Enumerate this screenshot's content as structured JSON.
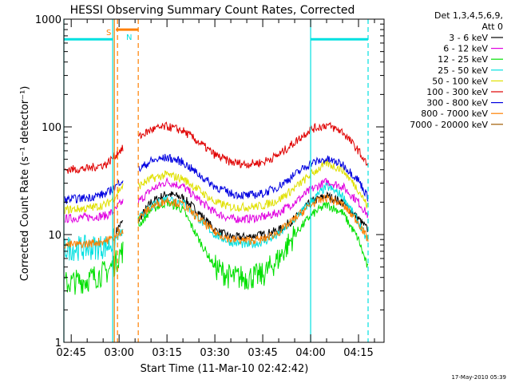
{
  "chart_data": {
    "type": "line",
    "title": "HESSI Observing Summary Count Rates, Corrected",
    "xlabel": "Start Time (11-Mar-10 02:42:42)",
    "ylabel": "Corrected Count Rate (s⁻¹ detector⁻¹)",
    "y_scale": "log",
    "ylim": [
      1,
      1000
    ],
    "xlim": [
      "02:42:42",
      "04:23:00"
    ],
    "y_ticks": [
      {
        "value": 1,
        "label": "1"
      },
      {
        "value": 10,
        "label": "10"
      },
      {
        "value": 100,
        "label": "100"
      },
      {
        "value": 1000,
        "label": "1000"
      }
    ],
    "x_ticks": [
      "02:45",
      "03:00",
      "03:15",
      "03:30",
      "03:45",
      "04:00",
      "04:15"
    ],
    "legend_title": [
      "Det 1,3,4,5,6,9,",
      "Att 0"
    ],
    "legend_position": "outside-right",
    "timestamp": "17-May-2010 05:39",
    "flag_labels": {
      "saa": "S",
      "night": "N"
    },
    "series": [
      {
        "name": "3 - 6 keV",
        "color": "#000000",
        "x": [
          "02:59",
          "03:00",
          "03:01",
          "03:06",
          "03:10",
          "03:15",
          "03:20",
          "03:25",
          "03:30",
          "03:35",
          "03:40",
          "03:45",
          "03:50",
          "03:55",
          "04:00",
          "04:05",
          "04:10",
          "04:15",
          "04:18"
        ],
        "values": [
          10.5,
          12,
          13,
          13.5,
          20,
          24,
          22,
          16,
          11,
          9.5,
          9.5,
          10,
          11,
          14,
          20,
          23,
          20,
          14,
          11
        ]
      },
      {
        "name": "6 - 12 keV",
        "color": "#e000e0",
        "x": [
          "02:43",
          "02:50",
          "02:56",
          "02:59",
          "03:00",
          "03:01",
          "03:06",
          "03:10",
          "03:15",
          "03:20",
          "03:25",
          "03:30",
          "03:35",
          "03:40",
          "03:45",
          "03:50",
          "03:55",
          "04:00",
          "04:05",
          "04:10",
          "04:15",
          "04:18"
        ],
        "values": [
          14,
          14.5,
          15,
          17,
          19,
          20,
          20,
          26,
          31,
          28,
          21,
          16,
          14,
          14,
          14.5,
          16,
          20,
          26,
          31,
          28,
          20,
          15
        ]
      },
      {
        "name": "12 - 25 keV",
        "color": "#00e000",
        "x": [
          "02:43",
          "02:50",
          "02:56",
          "02:59",
          "03:00",
          "03:01",
          "03:06",
          "03:10",
          "03:15",
          "03:20",
          "03:25",
          "03:30",
          "03:35",
          "03:40",
          "03:45",
          "03:50",
          "03:55",
          "04:00",
          "04:05",
          "04:10",
          "04:15",
          "04:18"
        ],
        "values": [
          3.5,
          3.8,
          4.5,
          5.5,
          6.5,
          7,
          12,
          17,
          20,
          17,
          9,
          5,
          4,
          4,
          4.2,
          6,
          10,
          15,
          19,
          16,
          9,
          4.8
        ]
      },
      {
        "name": "25 - 50 keV",
        "color": "#00e0e0",
        "x": [
          "02:43",
          "02:50",
          "02:56",
          "02:59",
          "03:00",
          "03:01",
          "03:06",
          "03:10",
          "03:15",
          "03:20",
          "03:25",
          "03:30",
          "03:35",
          "03:40",
          "03:45",
          "03:50",
          "03:55",
          "04:00",
          "04:05",
          "04:10",
          "04:15",
          "04:18"
        ],
        "values": [
          7.5,
          7.5,
          7.8,
          9,
          10,
          10.5,
          14,
          18,
          22,
          20,
          14,
          10,
          8.5,
          8,
          8.5,
          10,
          14,
          20,
          28,
          23,
          13,
          8.5
        ]
      },
      {
        "name": "50 - 100 keV",
        "color": "#e0e000",
        "x": [
          "02:43",
          "02:50",
          "02:56",
          "02:59",
          "03:00",
          "03:01",
          "03:06",
          "03:10",
          "03:15",
          "03:20",
          "03:25",
          "03:30",
          "03:35",
          "03:40",
          "03:45",
          "03:50",
          "03:55",
          "04:00",
          "04:05",
          "04:10",
          "04:15",
          "04:18"
        ],
        "values": [
          17,
          17.5,
          19,
          23,
          26,
          28,
          28,
          33,
          36,
          33,
          26,
          20,
          18,
          18,
          18.5,
          21,
          27,
          36,
          46,
          40,
          26,
          18
        ]
      },
      {
        "name": "100 - 300 keV",
        "color": "#e00000",
        "x": [
          "02:43",
          "02:50",
          "02:56",
          "02:59",
          "03:00",
          "03:01",
          "03:06",
          "03:10",
          "03:15",
          "03:20",
          "03:25",
          "03:30",
          "03:35",
          "03:40",
          "03:45",
          "03:50",
          "03:55",
          "04:00",
          "04:05",
          "04:10",
          "04:15",
          "04:18"
        ],
        "values": [
          40,
          41,
          45,
          55,
          60,
          62,
          80,
          94,
          101,
          92,
          72,
          55,
          47,
          45,
          47,
          55,
          72,
          95,
          104,
          90,
          60,
          43
        ]
      },
      {
        "name": "300 - 800 keV",
        "color": "#0000e0",
        "x": [
          "02:43",
          "02:50",
          "02:56",
          "02:59",
          "03:00",
          "03:01",
          "03:06",
          "03:10",
          "03:15",
          "03:20",
          "03:25",
          "03:30",
          "03:35",
          "03:40",
          "03:45",
          "03:50",
          "03:55",
          "04:00",
          "04:05",
          "04:10",
          "04:15",
          "04:18"
        ],
        "values": [
          21,
          22,
          24,
          28,
          31,
          32,
          40,
          48,
          52,
          47,
          36,
          28,
          24,
          23,
          24,
          28,
          36,
          46,
          50,
          45,
          32,
          22
        ]
      },
      {
        "name": "800 - 7000 keV",
        "color": "#ff7f00",
        "x": [
          "02:43",
          "02:50",
          "02:56",
          "02:59",
          "03:00",
          "03:01",
          "03:06",
          "03:10",
          "03:15",
          "03:20",
          "03:25",
          "03:30",
          "03:35",
          "03:40",
          "03:45",
          "03:50",
          "03:55",
          "04:00",
          "04:05",
          "04:10",
          "04:15",
          "04:18"
        ],
        "values": [
          8,
          8.2,
          8.8,
          9.5,
          10.5,
          11,
          14,
          18,
          21,
          19,
          14,
          10.5,
          9,
          8.8,
          9,
          10.5,
          14,
          19,
          22,
          19,
          13,
          9
        ]
      },
      {
        "name": "7000 - 20000 keV",
        "color": "#a05a00",
        "x": [],
        "values": []
      }
    ],
    "saa_bar": {
      "start": "02:59",
      "end": "03:06",
      "value": 800,
      "color": "#ff7f00"
    },
    "night_bars": [
      {
        "start": "02:42:42",
        "end": "02:58",
        "value": 650,
        "color": "#00e0e0"
      },
      {
        "start": "04:00",
        "end": "04:18",
        "value": 650,
        "color": "#00e0e0"
      }
    ],
    "vertical_lines": [
      {
        "time": "02:42:42",
        "color": "#00e0e0",
        "style": "solid"
      },
      {
        "time": "02:58",
        "color": "#00e0e0",
        "style": "solid"
      },
      {
        "time": "04:00",
        "color": "#00e0e0",
        "style": "solid"
      },
      {
        "time": "04:18",
        "color": "#00e0e0",
        "style": "dashed"
      },
      {
        "time": "02:58:30",
        "color": "#ff7f00",
        "style": "solid"
      },
      {
        "time": "02:59:30",
        "color": "#ff7f00",
        "style": "dashed"
      },
      {
        "time": "03:06",
        "color": "#ff7f00",
        "style": "dashed"
      }
    ]
  }
}
